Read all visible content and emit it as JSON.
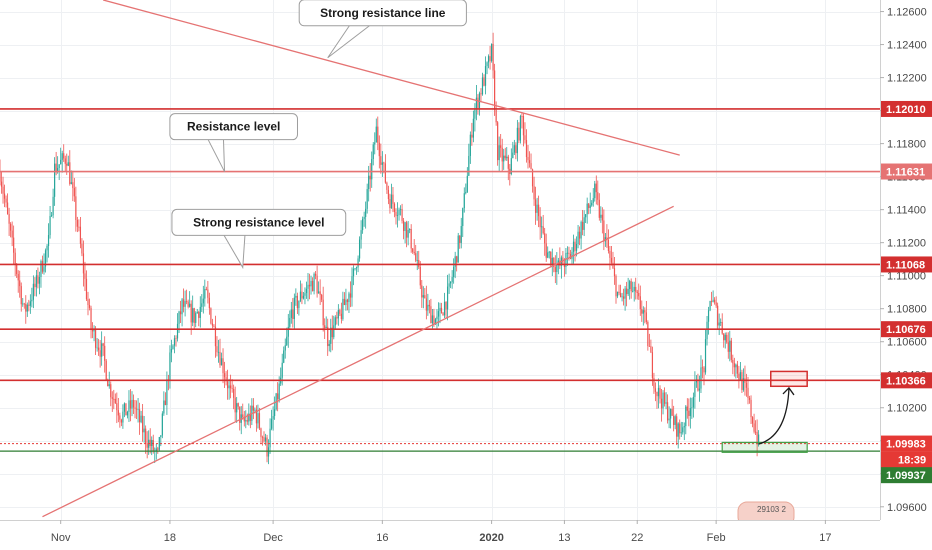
{
  "chart_data": {
    "type": "candlestick",
    "symbol": "EURUSD",
    "ylim": [
      1.0952,
      1.1267
    ],
    "y_ticks": [
      "1.12600",
      "1.12400",
      "1.12200",
      "1.12000",
      "1.11800",
      "1.11600",
      "1.11400",
      "1.11200",
      "1.11000",
      "1.10800",
      "1.10600",
      "1.10400",
      "1.10200",
      "1.10000",
      "1.09800",
      "1.09600"
    ],
    "y_tick_values": [
      1.126,
      1.124,
      1.122,
      1.12,
      1.118,
      1.116,
      1.114,
      1.112,
      1.11,
      1.108,
      1.106,
      1.104,
      1.102,
      1.1,
      1.098,
      1.096
    ],
    "x_ticks": [
      {
        "label": "Nov",
        "t": 10
      },
      {
        "label": "18",
        "t": 28
      },
      {
        "label": "Dec",
        "t": 45
      },
      {
        "label": "16",
        "t": 63
      },
      {
        "label": "2020",
        "t": 81
      },
      {
        "label": "13",
        "t": 93
      },
      {
        "label": "22",
        "t": 105
      },
      {
        "label": "Feb",
        "t": 118
      },
      {
        "label": "17",
        "t": 136
      }
    ],
    "xlim": [
      0,
      145
    ],
    "horizontal_levels": [
      {
        "value": 1.1201,
        "label": "1.12010",
        "color": "#d32f2f"
      },
      {
        "value": 1.11631,
        "label": "1.11631",
        "color": "#e57373"
      },
      {
        "value": 1.11068,
        "label": "1.11068",
        "color": "#d32f2f"
      },
      {
        "value": 1.10676,
        "label": "1.10676",
        "color": "#d32f2f"
      },
      {
        "value": 1.10366,
        "label": "1.10366",
        "color": "#d32f2f"
      }
    ],
    "support_level": {
      "value": 1.09937,
      "label": "1.09937",
      "color": "#2e7d32"
    },
    "current_price": {
      "value": 1.09983,
      "label": "1.09983",
      "countdown": "18:39",
      "color": "#e53935"
    },
    "trendlines": [
      {
        "name": "descending",
        "from": {
          "t": 17,
          "p": 1.1267
        },
        "to": {
          "t": 112,
          "p": 1.1173
        },
        "color": "#e57373"
      },
      {
        "name": "ascending",
        "from": {
          "t": 7,
          "p": 1.0954
        },
        "to": {
          "t": 111,
          "p": 1.1142
        },
        "color": "#e57373"
      }
    ],
    "annotations": [
      {
        "text": "Strong resistance line",
        "anchor": {
          "t": 54,
          "p": 1.1232
        }
      },
      {
        "text": "Resistance level",
        "anchor": {
          "t": 37,
          "p": 1.1163
        }
      },
      {
        "text": "Strong resistance level",
        "anchor": {
          "t": 40,
          "p": 1.1105
        }
      }
    ],
    "target_box": {
      "t0": 127,
      "t1": 133,
      "p0": 1.1033,
      "p1": 1.1042
    },
    "entry_box": {
      "t0": 119,
      "t1": 133,
      "p0": 1.0993,
      "p1": 1.0999
    },
    "arrow": {
      "from": {
        "t": 125,
        "p": 1.0998
      },
      "to": {
        "t": 130,
        "p": 1.1032
      }
    },
    "close_series": [
      {
        "t": 0,
        "p": 1.1163
      },
      {
        "t": 2,
        "p": 1.1118
      },
      {
        "t": 4,
        "p": 1.1078
      },
      {
        "t": 6,
        "p": 1.1095
      },
      {
        "t": 8,
        "p": 1.112
      },
      {
        "t": 9,
        "p": 1.1165
      },
      {
        "t": 11,
        "p": 1.1172
      },
      {
        "t": 13,
        "p": 1.1125
      },
      {
        "t": 15,
        "p": 1.1068
      },
      {
        "t": 17,
        "p": 1.1052
      },
      {
        "t": 18,
        "p": 1.1033
      },
      {
        "t": 20,
        "p": 1.1015
      },
      {
        "t": 22,
        "p": 1.1022
      },
      {
        "t": 24,
        "p": 1.1002
      },
      {
        "t": 26,
        "p": 1.099
      },
      {
        "t": 28,
        "p": 1.1048
      },
      {
        "t": 30,
        "p": 1.1082
      },
      {
        "t": 32,
        "p": 1.1075
      },
      {
        "t": 34,
        "p": 1.1088
      },
      {
        "t": 36,
        "p": 1.1055
      },
      {
        "t": 38,
        "p": 1.1028
      },
      {
        "t": 40,
        "p": 1.101
      },
      {
        "t": 42,
        "p": 1.1018
      },
      {
        "t": 44,
        "p": 1.0995
      },
      {
        "t": 46,
        "p": 1.1032
      },
      {
        "t": 48,
        "p": 1.1078
      },
      {
        "t": 50,
        "p": 1.109
      },
      {
        "t": 52,
        "p": 1.1098
      },
      {
        "t": 54,
        "p": 1.1062
      },
      {
        "t": 56,
        "p": 1.1075
      },
      {
        "t": 58,
        "p": 1.1095
      },
      {
        "t": 60,
        "p": 1.1135
      },
      {
        "t": 62,
        "p": 1.1188
      },
      {
        "t": 64,
        "p": 1.1148
      },
      {
        "t": 66,
        "p": 1.1138
      },
      {
        "t": 68,
        "p": 1.1118
      },
      {
        "t": 70,
        "p": 1.1082
      },
      {
        "t": 72,
        "p": 1.1072
      },
      {
        "t": 74,
        "p": 1.109
      },
      {
        "t": 76,
        "p": 1.1128
      },
      {
        "t": 78,
        "p": 1.1198
      },
      {
        "t": 80,
        "p": 1.1222
      },
      {
        "t": 81,
        "p": 1.1235
      },
      {
        "t": 82,
        "p": 1.1175
      },
      {
        "t": 84,
        "p": 1.1165
      },
      {
        "t": 86,
        "p": 1.1195
      },
      {
        "t": 88,
        "p": 1.1148
      },
      {
        "t": 90,
        "p": 1.1115
      },
      {
        "t": 92,
        "p": 1.1105
      },
      {
        "t": 94,
        "p": 1.1112
      },
      {
        "t": 96,
        "p": 1.1132
      },
      {
        "t": 98,
        "p": 1.115
      },
      {
        "t": 100,
        "p": 1.1118
      },
      {
        "t": 102,
        "p": 1.1085
      },
      {
        "t": 104,
        "p": 1.1092
      },
      {
        "t": 106,
        "p": 1.1078
      },
      {
        "t": 108,
        "p": 1.1032
      },
      {
        "t": 110,
        "p": 1.1018
      },
      {
        "t": 112,
        "p": 1.1005
      },
      {
        "t": 114,
        "p": 1.1025
      },
      {
        "t": 116,
        "p": 1.1045
      },
      {
        "t": 117,
        "p": 1.1088
      },
      {
        "t": 119,
        "p": 1.1068
      },
      {
        "t": 121,
        "p": 1.1048
      },
      {
        "t": 123,
        "p": 1.1028
      },
      {
        "t": 125,
        "p": 1.0998
      }
    ]
  },
  "watermark": {
    "text": "29103 2"
  }
}
